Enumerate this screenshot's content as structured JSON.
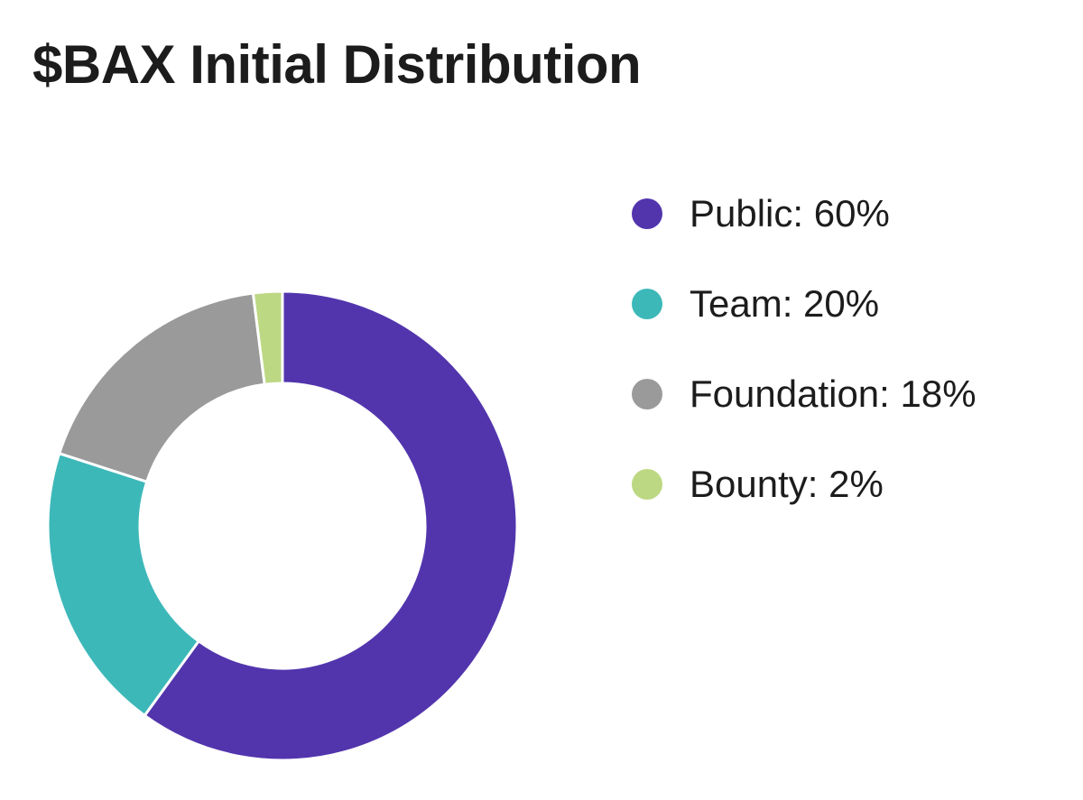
{
  "title": "$BAX Initial Distribution",
  "chart_data": {
    "type": "pie",
    "variant": "doughnut",
    "title": "$BAX Initial Distribution",
    "categories": [
      "Public",
      "Team",
      "Foundation",
      "Bounty"
    ],
    "values": [
      60,
      20,
      18,
      2
    ],
    "unit": "%",
    "colors": [
      "#5235ad",
      "#3db8b9",
      "#9a9a9a",
      "#bcd883"
    ],
    "legend_position": "right",
    "legend_labels": [
      "Public: 60%",
      "Team: 20%",
      "Foundation: 18%",
      "Bounty: 2%"
    ],
    "start_angle": "top",
    "direction": "clockwise",
    "segment_border_color": "#ffffff"
  }
}
